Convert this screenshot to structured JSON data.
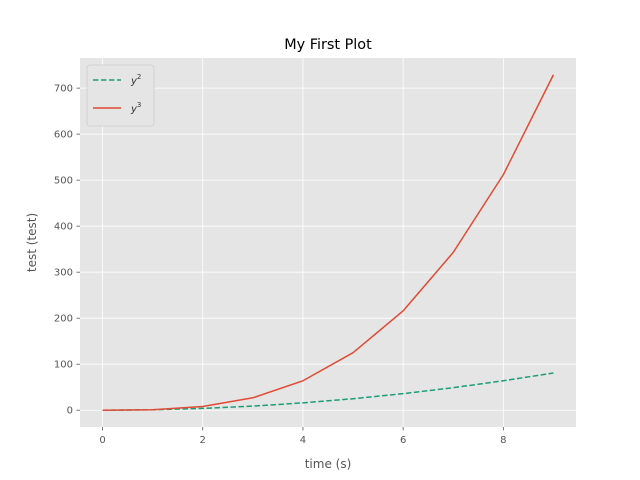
{
  "chart_data": {
    "type": "line",
    "title": "My First Plot",
    "xlabel": "time (s)",
    "ylabel": "test (test)",
    "xlim": [
      -0.45,
      9.45
    ],
    "ylim": [
      -36.45,
      765.45
    ],
    "grid": true,
    "legend_placement": "upper-left",
    "x_ticks": [
      0,
      2,
      4,
      6,
      8
    ],
    "y_ticks": [
      0,
      100,
      200,
      300,
      400,
      500,
      600,
      700
    ],
    "x_tick_labels": [
      "0",
      "2",
      "4",
      "6",
      "8"
    ],
    "y_tick_labels": [
      "0",
      "100",
      "200",
      "300",
      "400",
      "500",
      "600",
      "700"
    ],
    "x": [
      0,
      1,
      2,
      3,
      4,
      5,
      6,
      7,
      8,
      9
    ],
    "series": [
      {
        "name_base": "y",
        "name_sup": "2",
        "values": [
          0,
          1,
          4,
          9,
          16,
          25,
          36,
          49,
          64,
          81
        ],
        "color": "#1b9e77",
        "style": "dashed"
      },
      {
        "name_base": "y",
        "name_sup": "3",
        "values": [
          0,
          1,
          8,
          27,
          64,
          125,
          216,
          343,
          512,
          729
        ],
        "color": "#e24a33",
        "style": "solid"
      }
    ],
    "colors": {
      "plot_background": "#e5e5e5",
      "grid": "#ffffff",
      "tick_text": "#555555",
      "title_text": "#000000"
    }
  }
}
